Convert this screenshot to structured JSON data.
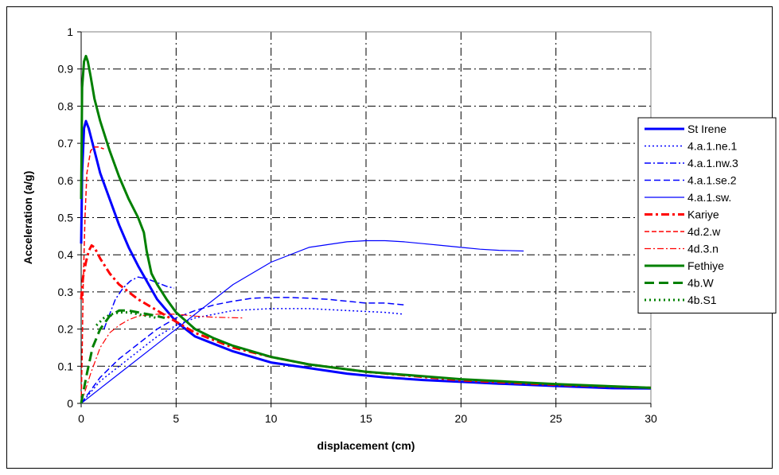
{
  "chart_data": {
    "type": "line",
    "xlabel": "displacement (cm)",
    "ylabel": "Acceleration (a/g)",
    "xlim": [
      0,
      30
    ],
    "ylim": [
      0,
      1
    ],
    "x_ticks": [
      0,
      5,
      10,
      15,
      20,
      25,
      30
    ],
    "y_ticks": [
      0,
      0.1,
      0.2,
      0.3,
      0.4,
      0.5,
      0.6,
      0.7,
      0.8,
      0.9,
      1
    ],
    "grid": true,
    "legend_position": "right",
    "series": [
      {
        "name": "St Irene",
        "color": "#0000ff",
        "width": 3,
        "dash": "",
        "x": [
          0,
          0.05,
          0.15,
          0.25,
          0.4,
          0.6,
          0.8,
          1,
          1.5,
          2,
          2.5,
          3,
          4,
          5,
          6,
          7,
          8,
          9,
          10,
          12,
          14,
          16,
          18,
          20,
          22,
          25,
          28,
          30
        ],
        "y": [
          0.43,
          0.62,
          0.74,
          0.76,
          0.74,
          0.7,
          0.66,
          0.62,
          0.55,
          0.48,
          0.42,
          0.37,
          0.28,
          0.22,
          0.18,
          0.16,
          0.14,
          0.125,
          0.11,
          0.095,
          0.08,
          0.07,
          0.063,
          0.058,
          0.053,
          0.047,
          0.041,
          0.04
        ]
      },
      {
        "name": "4.a.1.ne.1",
        "color": "#0000ff",
        "width": 1.5,
        "dash": "2,3",
        "x": [
          0,
          1,
          2,
          3,
          4,
          5,
          6,
          8,
          10,
          12,
          14,
          16,
          17
        ],
        "y": [
          0,
          0.06,
          0.1,
          0.14,
          0.18,
          0.21,
          0.23,
          0.25,
          0.255,
          0.255,
          0.25,
          0.245,
          0.24
        ]
      },
      {
        "name": "4.a.1.nw.3",
        "color": "#0000ff",
        "width": 1.5,
        "dash": "8,3,2,3",
        "x": [
          1.2,
          1.5,
          1.8,
          2.2,
          2.6,
          3,
          3.5,
          4,
          4.5,
          4.9
        ],
        "y": [
          0.2,
          0.24,
          0.28,
          0.31,
          0.33,
          0.34,
          0.335,
          0.325,
          0.315,
          0.31
        ]
      },
      {
        "name": "4.a.1.se.2",
        "color": "#0000ff",
        "width": 1.5,
        "dash": "8,4",
        "x": [
          0,
          1,
          2,
          3,
          4,
          5,
          6,
          7,
          8,
          9,
          10,
          11,
          12,
          13,
          14,
          15,
          16,
          17
        ],
        "y": [
          0,
          0.07,
          0.12,
          0.16,
          0.2,
          0.23,
          0.25,
          0.265,
          0.275,
          0.283,
          0.285,
          0.285,
          0.283,
          0.28,
          0.275,
          0.27,
          0.27,
          0.265
        ]
      },
      {
        "name": "4.a.1.sw.",
        "color": "#0000ff",
        "width": 1.2,
        "dash": "",
        "x": [
          0,
          2,
          4,
          6,
          8,
          10,
          12,
          14,
          15,
          16,
          17,
          18,
          19,
          20,
          21,
          22,
          23.3
        ],
        "y": [
          0,
          0.08,
          0.16,
          0.24,
          0.32,
          0.38,
          0.42,
          0.435,
          0.438,
          0.438,
          0.435,
          0.43,
          0.425,
          0.42,
          0.415,
          0.412,
          0.41
        ]
      },
      {
        "name": "Kariye",
        "color": "#ff0000",
        "width": 3,
        "dash": "10,4,3,4",
        "x": [
          0,
          0.1,
          0.25,
          0.4,
          0.55,
          0.7,
          1,
          1.5,
          2,
          3,
          4,
          5,
          6,
          7,
          8,
          10,
          12,
          15,
          20,
          25,
          30
        ],
        "y": [
          0.28,
          0.34,
          0.38,
          0.41,
          0.425,
          0.42,
          0.39,
          0.35,
          0.32,
          0.28,
          0.25,
          0.22,
          0.19,
          0.17,
          0.15,
          0.125,
          0.105,
          0.085,
          0.062,
          0.05,
          0.042
        ]
      },
      {
        "name": "4d.2.w",
        "color": "#ff0000",
        "width": 1.5,
        "dash": "6,3",
        "x": [
          0,
          0.05,
          0.1,
          0.2,
          0.3,
          0.5,
          0.7,
          0.9,
          1.2
        ],
        "y": [
          0,
          0.12,
          0.3,
          0.5,
          0.62,
          0.68,
          0.69,
          0.69,
          0.685
        ]
      },
      {
        "name": "4d.3.n",
        "color": "#ff0000",
        "width": 1.2,
        "dash": "8,3,2,3",
        "x": [
          0,
          0.5,
          1,
          1.5,
          2,
          2.5,
          3,
          4,
          5,
          6,
          7,
          8.5
        ],
        "y": [
          0,
          0.08,
          0.15,
          0.19,
          0.21,
          0.225,
          0.235,
          0.24,
          0.24,
          0.235,
          0.232,
          0.23
        ]
      },
      {
        "name": "Fethiye",
        "color": "#008000",
        "width": 3,
        "dash": "",
        "x": [
          0,
          0.05,
          0.15,
          0.25,
          0.35,
          0.5,
          0.7,
          1,
          1.5,
          2,
          2.5,
          3,
          3.3,
          3.45,
          3.7,
          4,
          4.5,
          5,
          6,
          7,
          8,
          9,
          10,
          12,
          15,
          20,
          25,
          30
        ],
        "y": [
          0.55,
          0.85,
          0.92,
          0.935,
          0.92,
          0.88,
          0.82,
          0.76,
          0.68,
          0.61,
          0.55,
          0.5,
          0.46,
          0.41,
          0.35,
          0.32,
          0.28,
          0.245,
          0.2,
          0.175,
          0.155,
          0.14,
          0.125,
          0.105,
          0.085,
          0.065,
          0.052,
          0.042
        ]
      },
      {
        "name": "4b.W",
        "color": "#008000",
        "width": 3,
        "dash": "12,6",
        "x": [
          0,
          0.3,
          0.6,
          1,
          1.5,
          2,
          2.5,
          3,
          3.5,
          4,
          4.4
        ],
        "y": [
          0,
          0.08,
          0.15,
          0.2,
          0.235,
          0.25,
          0.25,
          0.245,
          0.24,
          0.235,
          0.23
        ]
      },
      {
        "name": "4b.S1",
        "color": "#008000",
        "width": 3,
        "dash": "2,4",
        "x": [
          0.8,
          1.2,
          1.6,
          2,
          2.5,
          3,
          3.5,
          4
        ],
        "y": [
          0.21,
          0.23,
          0.24,
          0.245,
          0.245,
          0.24,
          0.235,
          0.23
        ]
      }
    ]
  }
}
